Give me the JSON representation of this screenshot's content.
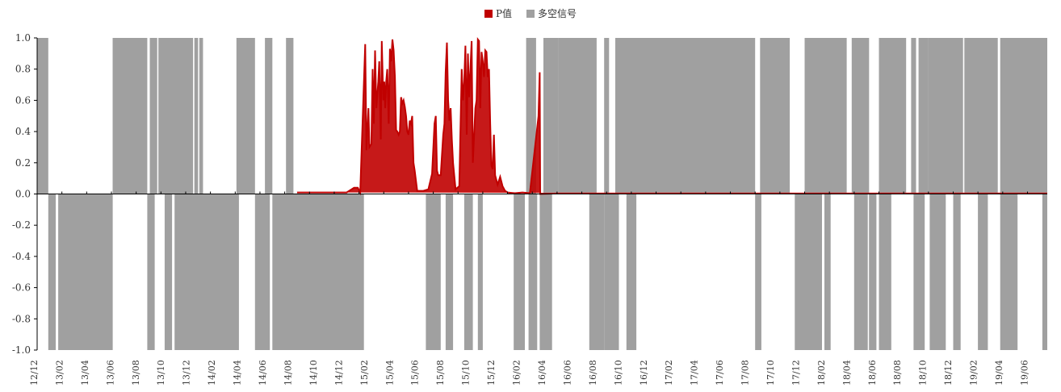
{
  "legend": {
    "series1": "P值",
    "series2": "多空信号"
  },
  "colors": {
    "p_value": "#c00000",
    "signal": "#a0a0a0",
    "axis": "#000000"
  },
  "chart_data": {
    "type": "bar",
    "ylim": [
      -1.0,
      1.0
    ],
    "y_ticks": [
      "1.0",
      "0.8",
      "0.6",
      "0.4",
      "0.2",
      "0.0",
      "-0.2",
      "-0.4",
      "-0.6",
      "-0.8",
      "-1.0"
    ],
    "x_tick_labels": [
      "12/12",
      "13/02",
      "13/04",
      "13/06",
      "13/08",
      "13/10",
      "13/12",
      "14/02",
      "14/04",
      "14/06",
      "14/08",
      "14/10",
      "14/12",
      "15/02",
      "15/04",
      "15/06",
      "15/08",
      "15/10",
      "15/12",
      "16/02",
      "16/04",
      "16/06",
      "16/08",
      "16/10",
      "16/12",
      "17/02",
      "17/04",
      "17/06",
      "17/08",
      "17/10",
      "17/12",
      "18/02",
      "18/04",
      "18/06",
      "18/08",
      "18/10",
      "18/12",
      "19/02",
      "19/04",
      "19/06"
    ],
    "x_range_months": [
      0,
      40.8
    ],
    "series": [
      {
        "name": "多空信号",
        "intervals": [
          [
            0.0,
            0.45,
            1
          ],
          [
            0.45,
            0.75,
            -1
          ],
          [
            0.85,
            3.05,
            -1
          ],
          [
            3.05,
            4.45,
            1
          ],
          [
            4.45,
            4.75,
            -1
          ],
          [
            4.55,
            4.85,
            1
          ],
          [
            4.9,
            6.3,
            1
          ],
          [
            5.15,
            5.45,
            -1
          ],
          [
            5.55,
            8.15,
            -1
          ],
          [
            6.35,
            6.5,
            1
          ],
          [
            6.55,
            6.7,
            1
          ],
          [
            8.05,
            8.8,
            1
          ],
          [
            8.8,
            9.4,
            -1
          ],
          [
            9.2,
            9.5,
            1
          ],
          [
            9.5,
            13.2,
            -1
          ],
          [
            10.05,
            10.35,
            1
          ],
          [
            15.7,
            16.3,
            -1
          ],
          [
            16.5,
            16.8,
            -1
          ],
          [
            17.25,
            17.6,
            -1
          ],
          [
            17.8,
            18.0,
            -1
          ],
          [
            19.25,
            19.7,
            -1
          ],
          [
            19.75,
            20.15,
            1
          ],
          [
            19.85,
            20.2,
            -1
          ],
          [
            20.3,
            20.8,
            -1
          ],
          [
            20.45,
            21.05,
            1
          ],
          [
            21.05,
            22.6,
            1
          ],
          [
            22.3,
            22.9,
            -1
          ],
          [
            22.9,
            23.1,
            1
          ],
          [
            22.9,
            23.3,
            -1
          ],
          [
            23.3,
            23.5,
            -1
          ],
          [
            23.35,
            29.0,
            1
          ],
          [
            23.8,
            24.2,
            -1
          ],
          [
            29.0,
            29.25,
            -1
          ],
          [
            29.2,
            30.4,
            1
          ],
          [
            30.6,
            31.7,
            -1
          ],
          [
            31.0,
            32.7,
            1
          ],
          [
            31.8,
            32.05,
            -1
          ],
          [
            32.9,
            33.6,
            1
          ],
          [
            33.0,
            33.55,
            -1
          ],
          [
            33.6,
            33.9,
            -1
          ],
          [
            34.0,
            35.1,
            1
          ],
          [
            34.0,
            34.5,
            -1
          ],
          [
            35.3,
            35.5,
            1
          ],
          [
            35.4,
            35.85,
            -1
          ],
          [
            35.6,
            36.0,
            1
          ],
          [
            36.0,
            37.4,
            1
          ],
          [
            36.05,
            36.7,
            -1
          ],
          [
            37.0,
            37.3,
            -1
          ],
          [
            37.45,
            38.8,
            1
          ],
          [
            38.0,
            38.4,
            -1
          ],
          [
            38.9,
            39.6,
            -1
          ],
          [
            38.9,
            40.8,
            1
          ],
          [
            40.6,
            40.8,
            -1
          ]
        ]
      },
      {
        "name": "P值",
        "points": [
          [
            10.5,
            0.01
          ],
          [
            11.0,
            0.01
          ],
          [
            11.5,
            0.01
          ],
          [
            12.0,
            0.01
          ],
          [
            12.5,
            0.01
          ],
          [
            12.8,
            0.04
          ],
          [
            12.95,
            0.04
          ],
          [
            13.05,
            0.01
          ],
          [
            13.25,
            0.96
          ],
          [
            13.3,
            0.28
          ],
          [
            13.38,
            0.55
          ],
          [
            13.42,
            0.3
          ],
          [
            13.5,
            0.32
          ],
          [
            13.55,
            0.8
          ],
          [
            13.6,
            0.45
          ],
          [
            13.65,
            0.92
          ],
          [
            13.7,
            0.55
          ],
          [
            13.78,
            0.72
          ],
          [
            13.82,
            0.85
          ],
          [
            13.88,
            0.35
          ],
          [
            13.92,
            0.98
          ],
          [
            13.98,
            0.6
          ],
          [
            14.02,
            0.72
          ],
          [
            14.06,
            0.55
          ],
          [
            14.1,
            0.72
          ],
          [
            14.14,
            0.8
          ],
          [
            14.2,
            0.45
          ],
          [
            14.25,
            0.93
          ],
          [
            14.3,
            0.85
          ],
          [
            14.35,
            0.99
          ],
          [
            14.4,
            0.92
          ],
          [
            14.45,
            0.75
          ],
          [
            14.5,
            0.41
          ],
          [
            14.55,
            0.4
          ],
          [
            14.6,
            0.38
          ],
          [
            14.65,
            0.4
          ],
          [
            14.7,
            0.62
          ],
          [
            14.75,
            0.58
          ],
          [
            14.8,
            0.6
          ],
          [
            14.85,
            0.56
          ],
          [
            14.9,
            0.5
          ],
          [
            14.95,
            0.4
          ],
          [
            15.0,
            0.38
          ],
          [
            15.05,
            0.47
          ],
          [
            15.1,
            0.45
          ],
          [
            15.15,
            0.5
          ],
          [
            15.2,
            0.2
          ],
          [
            15.25,
            0.15
          ],
          [
            15.35,
            0.02
          ],
          [
            15.6,
            0.02
          ],
          [
            15.8,
            0.03
          ],
          [
            15.95,
            0.13
          ],
          [
            16.05,
            0.45
          ],
          [
            16.1,
            0.5
          ],
          [
            16.15,
            0.15
          ],
          [
            16.2,
            0.12
          ],
          [
            16.3,
            0.12
          ],
          [
            16.4,
            0.38
          ],
          [
            16.45,
            0.45
          ],
          [
            16.5,
            0.78
          ],
          [
            16.55,
            0.97
          ],
          [
            16.6,
            0.6
          ],
          [
            16.65,
            0.47
          ],
          [
            16.7,
            0.55
          ],
          [
            16.75,
            0.35
          ],
          [
            16.8,
            0.2
          ],
          [
            16.9,
            0.03
          ],
          [
            17.05,
            0.05
          ],
          [
            17.15,
            0.8
          ],
          [
            17.2,
            0.6
          ],
          [
            17.25,
            0.72
          ],
          [
            17.3,
            0.95
          ],
          [
            17.35,
            0.38
          ],
          [
            17.4,
            0.9
          ],
          [
            17.45,
            0.62
          ],
          [
            17.55,
            0.98
          ],
          [
            17.6,
            0.2
          ],
          [
            17.65,
            0.38
          ],
          [
            17.7,
            0.55
          ],
          [
            17.75,
            0.6
          ],
          [
            17.8,
            0.99
          ],
          [
            17.85,
            0.98
          ],
          [
            17.9,
            0.55
          ],
          [
            17.95,
            0.91
          ],
          [
            18.0,
            0.85
          ],
          [
            18.05,
            0.75
          ],
          [
            18.1,
            0.92
          ],
          [
            18.15,
            0.91
          ],
          [
            18.2,
            0.75
          ],
          [
            18.25,
            0.8
          ],
          [
            18.3,
            0.45
          ],
          [
            18.35,
            0.18
          ],
          [
            18.4,
            0.16
          ],
          [
            18.45,
            0.38
          ],
          [
            18.5,
            0.12
          ],
          [
            18.6,
            0.06
          ],
          [
            18.7,
            0.11
          ],
          [
            18.8,
            0.05
          ],
          [
            18.9,
            0.02
          ],
          [
            19.0,
            0.01
          ],
          [
            19.3,
            0.005
          ],
          [
            19.6,
            0.01
          ],
          [
            19.9,
            0.005
          ],
          [
            20.25,
            0.5
          ],
          [
            20.3,
            0.78
          ],
          [
            20.32,
            0.0
          ],
          [
            21.0,
            0.003
          ],
          [
            23.0,
            0.003
          ],
          [
            25.0,
            0.003
          ],
          [
            27.0,
            0.003
          ],
          [
            29.0,
            0.003
          ],
          [
            31.0,
            0.003
          ],
          [
            33.0,
            0.003
          ],
          [
            35.0,
            0.003
          ],
          [
            37.0,
            0.003
          ],
          [
            39.0,
            0.003
          ],
          [
            40.8,
            0.003
          ]
        ]
      }
    ]
  }
}
